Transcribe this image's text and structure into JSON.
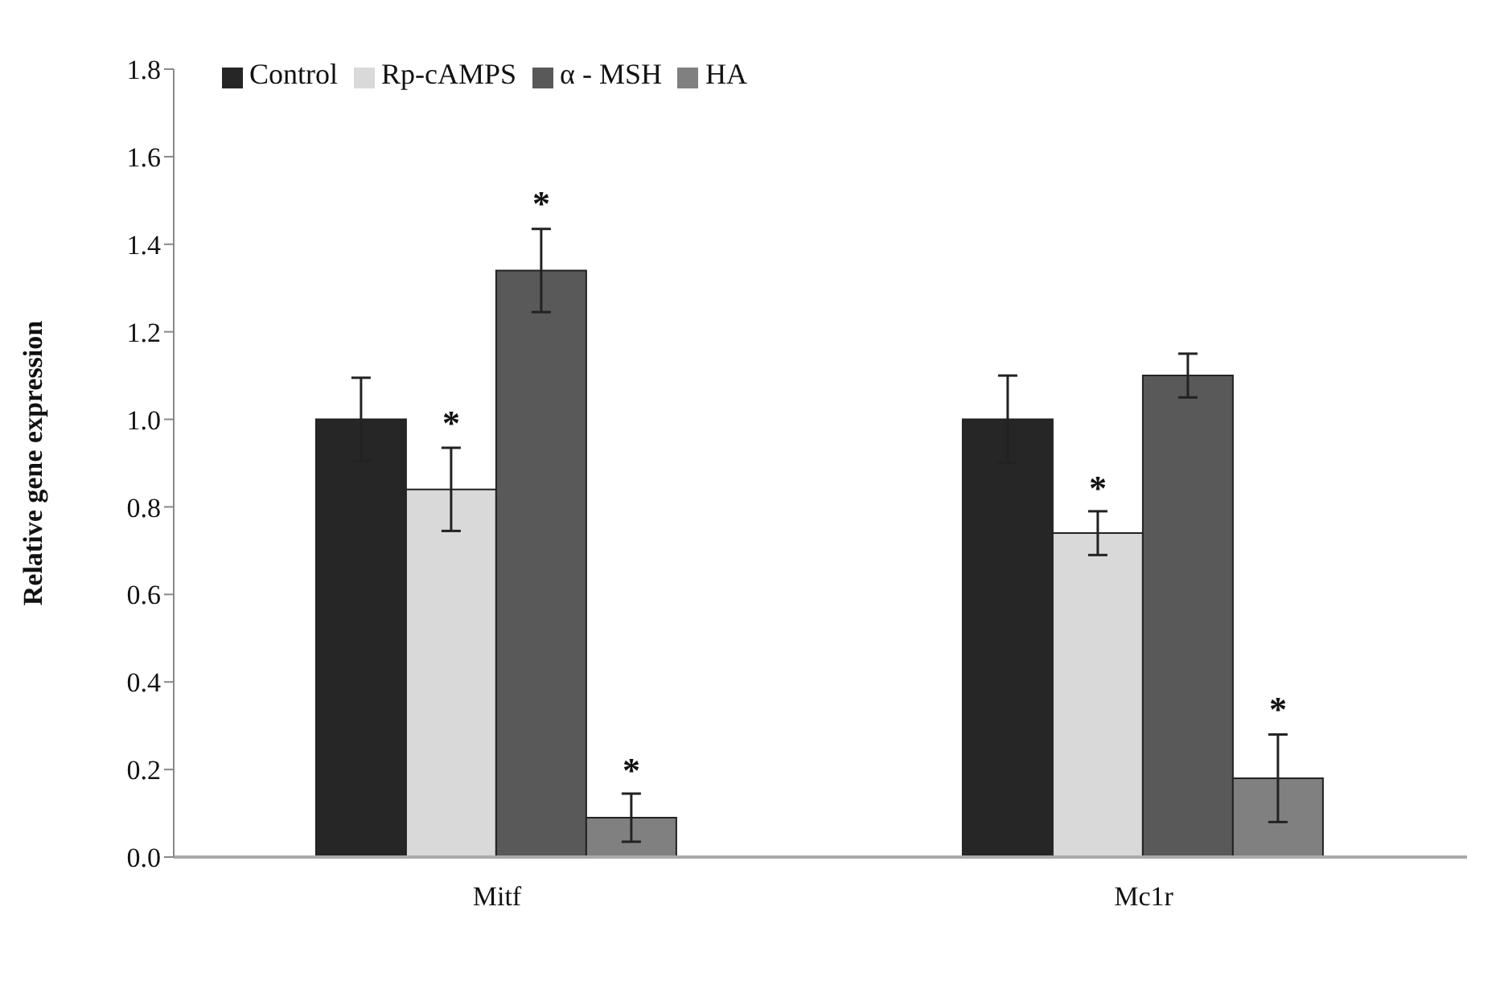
{
  "chart_data": {
    "type": "bar",
    "ylabel": "Relative gene expression",
    "categories": [
      "Mitf",
      "Mc1r"
    ],
    "series": [
      {
        "name": "Control",
        "color": "#262626",
        "values": [
          1.0,
          1.0
        ],
        "errors": [
          0.095,
          0.1
        ]
      },
      {
        "name": "Rp-cAMPS",
        "color": "#d9d9d9",
        "values": [
          0.84,
          0.74
        ],
        "errors": [
          0.095,
          0.05
        ],
        "value_labels": [
          "*",
          "*"
        ]
      },
      {
        "name": "α - MSH",
        "color": "#595959",
        "values": [
          1.34,
          1.1
        ],
        "errors": [
          0.095,
          0.05
        ],
        "value_labels": [
          "*",
          null
        ]
      },
      {
        "name": "HA",
        "color": "#808080",
        "values": [
          0.09,
          0.18
        ],
        "errors": [
          0.055,
          0.1
        ],
        "value_labels": [
          "*",
          "*"
        ]
      }
    ],
    "ylim": [
      0,
      1.8
    ],
    "yticks": [
      {
        "value": 0,
        "label": "0.0"
      },
      {
        "value": 0.2,
        "label": "0.2"
      },
      {
        "value": 0.4,
        "label": "0.4"
      },
      {
        "value": 0.6,
        "label": "0.6"
      },
      {
        "value": 0.8,
        "label": "0.8"
      },
      {
        "value": 1,
        "label": "1.0"
      },
      {
        "value": 1.2,
        "label": "1.2"
      },
      {
        "value": 1.4,
        "label": "1.4"
      },
      {
        "value": 1.6,
        "label": "1.6"
      },
      {
        "value": 1.8,
        "label": "1.8"
      }
    ],
    "legend": "top left",
    "grid": false
  }
}
